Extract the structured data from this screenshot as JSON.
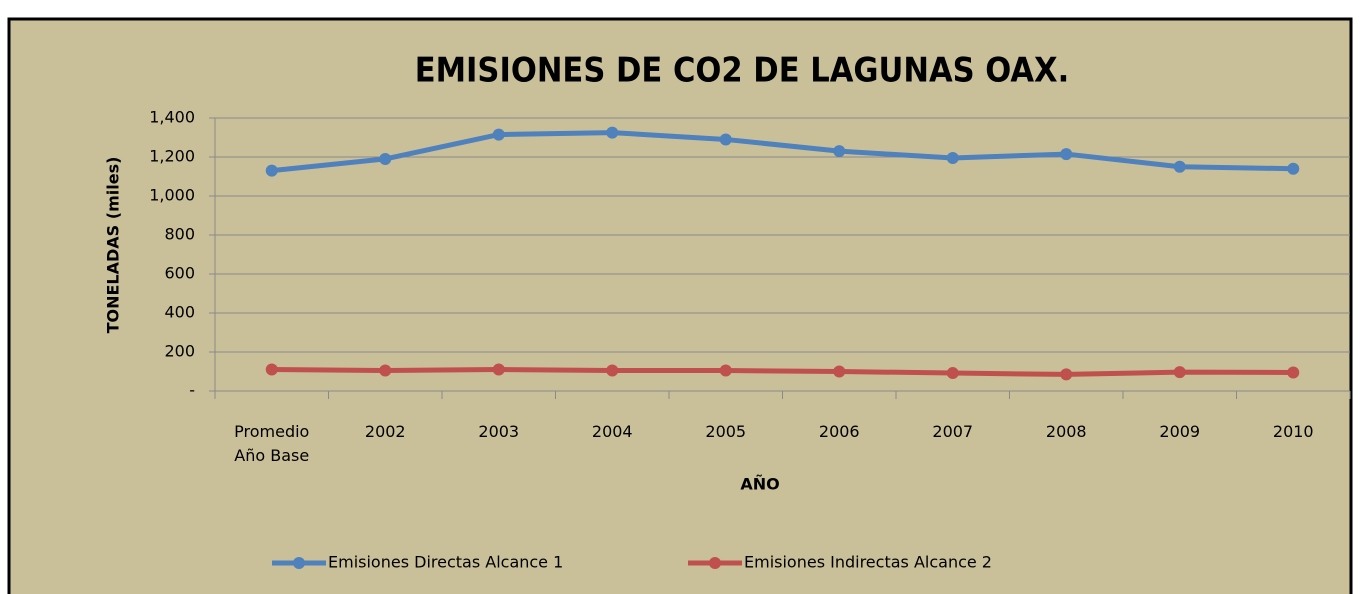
{
  "chart_data": {
    "type": "line",
    "title": "EMISIONES DE CO2 DE LAGUNAS OAX.",
    "x_label": "AÑO",
    "y_label": "TONELADAS (miles)",
    "categories": [
      "Promedio Año Base",
      "2002",
      "2003",
      "2004",
      "2005",
      "2006",
      "2007",
      "2008",
      "2009",
      "2010"
    ],
    "series": [
      {
        "name": "Emisiones Directas Alcance 1",
        "color": "#4f81bd",
        "values": [
          1130,
          1190,
          1315,
          1325,
          1290,
          1230,
          1195,
          1215,
          1150,
          1140
        ]
      },
      {
        "name": "Emisiones Indirectas Alcance 2",
        "color": "#c0504d",
        "values": [
          110,
          105,
          110,
          105,
          105,
          100,
          92,
          85,
          97,
          95
        ]
      }
    ],
    "ylim": [
      0,
      1400
    ],
    "yticks": [
      {
        "value": 0,
        "label": "-"
      },
      200,
      400,
      600,
      800,
      {
        "value": 1000,
        "label": "1,000"
      },
      {
        "value": 1200,
        "label": "1,200"
      },
      {
        "value": 1400,
        "label": "1,400"
      }
    ],
    "grid": true,
    "legend": "bottom"
  }
}
